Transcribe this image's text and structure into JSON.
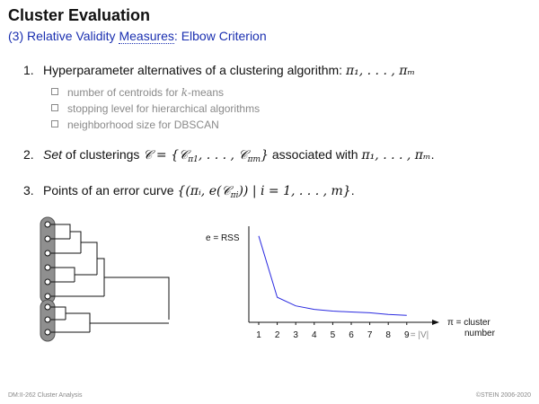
{
  "header": {
    "title": "Cluster Evaluation",
    "subtitle_prefix": "(3) Relative Validity ",
    "subtitle_measures": "Measures",
    "subtitle_suffix": ": Elbow Criterion"
  },
  "items": [
    {
      "number": "1.",
      "text": "Hyperparameter alternatives of a clustering algorithm: ",
      "math": "π₁, . . . , πₘ"
    },
    {
      "number": "2.",
      "italic": "Set",
      "text": " of clusterings ",
      "math_set": "𝒞 = {𝒞",
      "math_set2": ", . . . , 𝒞",
      "math_set3": "}",
      "text2": " associated with ",
      "math2": "π₁, . . . , πₘ",
      "end": "."
    },
    {
      "number": "3.",
      "text": "Points of an error curve ",
      "math": "{(πᵢ, e(𝒞",
      "math_b": ")) | i = 1, . . . , m}",
      "end": "."
    }
  ],
  "subitems": [
    {
      "text": "number of centroids for ",
      "math": "k",
      "text2": "-means"
    },
    {
      "text": "stopping level for hierarchical algorithms"
    },
    {
      "text": "neighborhood size for DBSCAN"
    }
  ],
  "subscripts": {
    "pi1": "π1",
    "pim": "πm",
    "pii": "πi"
  },
  "chart_data": {
    "type": "line",
    "ylabel": "e = RSS",
    "xlabel_line1": "π = cluster",
    "xlabel_line2": "number",
    "x_tick_labels": [
      "1",
      "2",
      "3",
      "4",
      "5",
      "6",
      "7",
      "8",
      "9"
    ],
    "x_last_suffix": " = |V|",
    "x": [
      1,
      2,
      3,
      4,
      5,
      6,
      7,
      8,
      9
    ],
    "y": [
      100,
      29,
      19,
      15,
      13,
      12,
      11,
      9,
      8
    ],
    "ylim": [
      0,
      105
    ],
    "line_color": "#2a2ae0"
  },
  "dendrogram": {
    "leaf_count": 9,
    "group_sizes": [
      6,
      3
    ]
  },
  "footer": {
    "left": "DM:II-262   Cluster Analysis",
    "right": "©STEIN 2006-2020"
  }
}
